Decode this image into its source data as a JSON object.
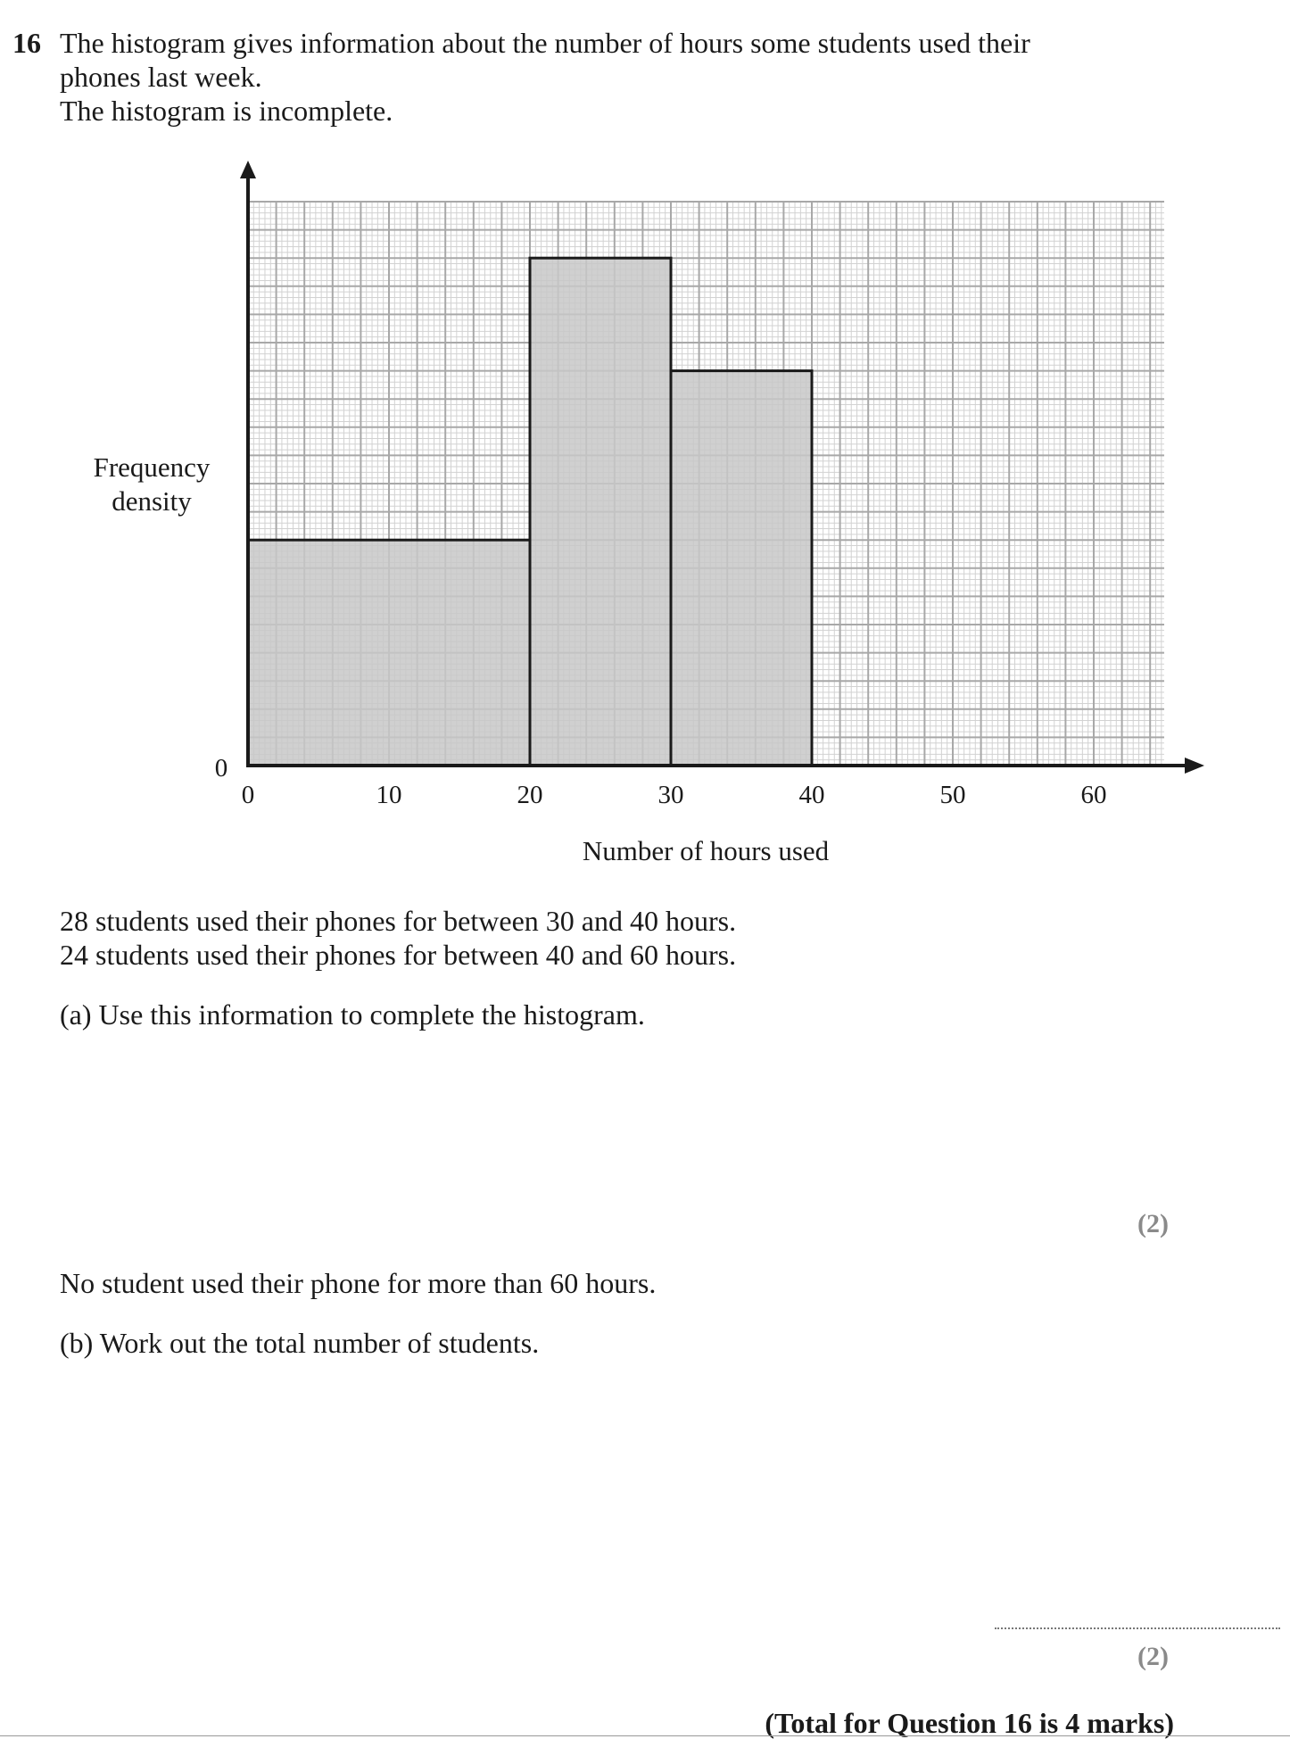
{
  "question": {
    "number": "16",
    "intro_line1": "The histogram gives information about the number of hours some students used their",
    "intro_line2": "phones last week.",
    "intro_line3": "The histogram is incomplete.",
    "info_line1": "28 students used their phones for between 30 and 40 hours.",
    "info_line2": "24 students used their phones for between 40 and 60 hours.",
    "part_a": "(a) Use this information to complete the histogram.",
    "part_a_marks": "(2)",
    "info_line3": "No student used their phone for more than 60 hours.",
    "part_b": "(b) Work out the total number of students.",
    "part_b_marks": "(2)",
    "total": "(Total for Question 16 is 4 marks)"
  },
  "chart_data": {
    "type": "bar",
    "title": "",
    "xlabel": "Number of hours used",
    "ylabel_line1": "Frequency",
    "ylabel_line2": "density",
    "x_ticks": [
      0,
      10,
      20,
      30,
      40,
      50,
      60
    ],
    "x_tick_labels": [
      "0",
      "10",
      "20",
      "30",
      "40",
      "50",
      "60"
    ],
    "y_origin_label": "0",
    "xlim": [
      0,
      65
    ],
    "ylim": [
      0,
      4
    ],
    "grid": true,
    "bars": [
      {
        "x_start": 0,
        "x_end": 20,
        "height": 1.6
      },
      {
        "x_start": 20,
        "x_end": 30,
        "height": 3.6
      },
      {
        "x_start": 30,
        "x_end": 40,
        "height": 2.8
      }
    ],
    "bar_fill": "#c8c8c8"
  }
}
